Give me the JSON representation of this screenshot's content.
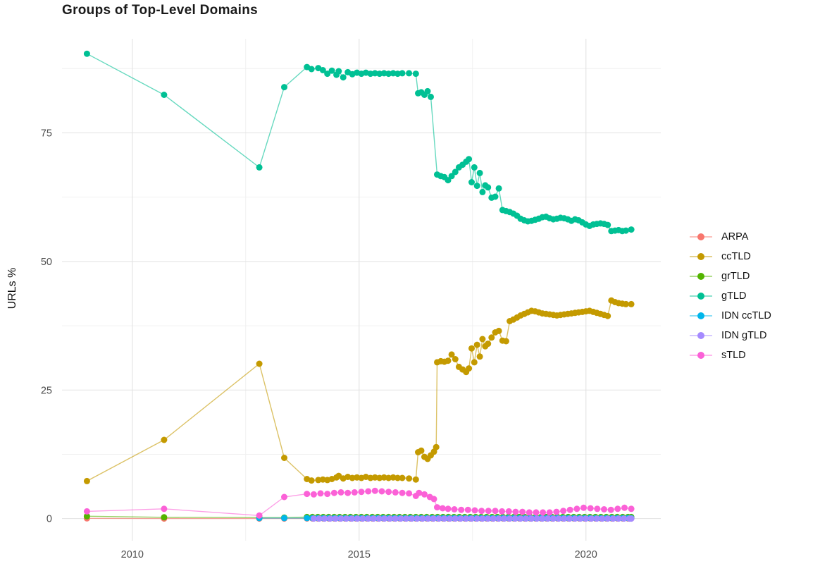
{
  "chart_data": {
    "type": "scatter",
    "title": "Groups of Top-Level Domains",
    "xlabel": "",
    "ylabel": "URLs %",
    "x_axis": {
      "ticks": [
        2010,
        2015,
        2020
      ],
      "minor_ticks": [
        2012.5,
        2017.5
      ],
      "range": [
        2008.45,
        2021.65
      ],
      "grid": true
    },
    "y_axis": {
      "ticks": [
        0,
        25,
        50,
        75
      ],
      "minor_ticks": [
        12.5,
        37.5,
        62.5,
        87.5
      ],
      "range": [
        -4.3,
        93.3
      ],
      "grid": true
    },
    "legend_position": "right",
    "style": {
      "grid_major_color": "#e2e2e2",
      "grid_minor_color": "#efefef",
      "axis_text_color": "#4d4d4d",
      "background": "#ffffff",
      "point_radius": 4.5,
      "line_opacity": 0.6
    },
    "series": [
      {
        "name": "ARPA",
        "color": "#F8766D",
        "points": [
          [
            2009.0,
            0.05
          ],
          [
            2010.7,
            0.0
          ],
          [
            2012.8,
            0.0
          ],
          [
            2013.35,
            0.0
          ]
        ],
        "runs": [
          {
            "from": 2013.85,
            "to": 2021.0,
            "step": 0.12,
            "value": 0.02
          }
        ]
      },
      {
        "name": "ccTLD",
        "color": "#C49A00",
        "points": [
          [
            2009.0,
            7.3
          ],
          [
            2010.7,
            15.3
          ],
          [
            2012.8,
            30.1
          ],
          [
            2013.35,
            11.8
          ],
          [
            2013.85,
            7.7
          ],
          [
            2013.95,
            7.4
          ],
          [
            2014.1,
            7.5
          ],
          [
            2014.2,
            7.6
          ],
          [
            2014.3,
            7.5
          ],
          [
            2014.4,
            7.7
          ],
          [
            2014.5,
            8.0
          ],
          [
            2014.55,
            8.3
          ],
          [
            2014.65,
            7.8
          ],
          [
            2014.75,
            8.1
          ],
          [
            2014.85,
            7.9
          ],
          [
            2014.95,
            8.0
          ],
          [
            2015.05,
            7.9
          ],
          [
            2015.15,
            8.1
          ],
          [
            2015.25,
            7.9
          ],
          [
            2015.35,
            8.0
          ],
          [
            2015.45,
            7.9
          ],
          [
            2015.55,
            8.0
          ],
          [
            2015.65,
            7.9
          ],
          [
            2015.75,
            8.0
          ],
          [
            2015.85,
            7.9
          ],
          [
            2015.95,
            7.9
          ],
          [
            2016.1,
            7.8
          ],
          [
            2016.25,
            7.6
          ],
          [
            2016.3,
            12.9
          ],
          [
            2016.37,
            13.2
          ],
          [
            2016.44,
            12.0
          ],
          [
            2016.51,
            11.6
          ],
          [
            2016.58,
            12.3
          ],
          [
            2016.65,
            13.0
          ],
          [
            2016.7,
            13.9
          ],
          [
            2016.72,
            30.4
          ],
          [
            2016.8,
            30.6
          ],
          [
            2016.88,
            30.5
          ],
          [
            2016.96,
            30.7
          ],
          [
            2017.04,
            31.9
          ],
          [
            2017.12,
            31.0
          ],
          [
            2017.2,
            29.5
          ],
          [
            2017.28,
            29.0
          ],
          [
            2017.36,
            28.5
          ],
          [
            2017.42,
            29.2
          ],
          [
            2017.48,
            33.1
          ],
          [
            2017.54,
            30.4
          ],
          [
            2017.6,
            33.8
          ],
          [
            2017.66,
            31.5
          ],
          [
            2017.72,
            34.9
          ],
          [
            2017.78,
            33.5
          ],
          [
            2017.84,
            34.0
          ],
          [
            2017.92,
            35.2
          ],
          [
            2018.0,
            36.2
          ],
          [
            2018.08,
            36.5
          ],
          [
            2018.16,
            34.6
          ],
          [
            2018.24,
            34.5
          ],
          [
            2018.32,
            38.4
          ],
          [
            2018.4,
            38.7
          ],
          [
            2018.48,
            39.1
          ],
          [
            2018.56,
            39.5
          ],
          [
            2018.64,
            39.8
          ],
          [
            2018.72,
            40.1
          ],
          [
            2018.8,
            40.4
          ],
          [
            2018.88,
            40.3
          ],
          [
            2018.96,
            40.1
          ],
          [
            2019.04,
            39.9
          ],
          [
            2019.12,
            39.8
          ],
          [
            2019.2,
            39.7
          ],
          [
            2019.28,
            39.6
          ],
          [
            2019.36,
            39.5
          ],
          [
            2019.44,
            39.6
          ],
          [
            2019.52,
            39.7
          ],
          [
            2019.6,
            39.8
          ],
          [
            2019.68,
            39.9
          ],
          [
            2019.76,
            40.0
          ],
          [
            2019.84,
            40.1
          ],
          [
            2019.92,
            40.2
          ],
          [
            2020.0,
            40.3
          ],
          [
            2020.08,
            40.4
          ],
          [
            2020.16,
            40.2
          ],
          [
            2020.24,
            40.0
          ],
          [
            2020.32,
            39.8
          ],
          [
            2020.4,
            39.6
          ],
          [
            2020.48,
            39.4
          ],
          [
            2020.56,
            42.4
          ],
          [
            2020.64,
            42.1
          ],
          [
            2020.72,
            41.9
          ],
          [
            2020.8,
            41.8
          ],
          [
            2020.88,
            41.7
          ],
          [
            2021.0,
            41.7
          ]
        ],
        "runs": []
      },
      {
        "name": "grTLD",
        "color": "#53B400",
        "points": [
          [
            2009.0,
            0.45
          ],
          [
            2010.7,
            0.25
          ],
          [
            2012.8,
            0.2
          ],
          [
            2013.35,
            0.2
          ]
        ],
        "runs": [
          {
            "from": 2013.85,
            "to": 2021.0,
            "step": 0.12,
            "value": 0.3
          }
        ]
      },
      {
        "name": "gTLD",
        "color": "#00C094",
        "points": [
          [
            2009.0,
            90.4
          ],
          [
            2010.7,
            82.4
          ],
          [
            2012.8,
            68.3
          ],
          [
            2013.35,
            83.9
          ],
          [
            2013.85,
            87.8
          ],
          [
            2013.95,
            87.4
          ],
          [
            2014.1,
            87.6
          ],
          [
            2014.2,
            87.2
          ],
          [
            2014.3,
            86.5
          ],
          [
            2014.4,
            87.1
          ],
          [
            2014.5,
            86.3
          ],
          [
            2014.55,
            87.0
          ],
          [
            2014.65,
            85.8
          ],
          [
            2014.75,
            86.8
          ],
          [
            2014.85,
            86.4
          ],
          [
            2014.95,
            86.7
          ],
          [
            2015.05,
            86.5
          ],
          [
            2015.15,
            86.7
          ],
          [
            2015.25,
            86.5
          ],
          [
            2015.35,
            86.6
          ],
          [
            2015.45,
            86.5
          ],
          [
            2015.55,
            86.6
          ],
          [
            2015.65,
            86.5
          ],
          [
            2015.75,
            86.6
          ],
          [
            2015.85,
            86.5
          ],
          [
            2015.95,
            86.6
          ],
          [
            2016.1,
            86.6
          ],
          [
            2016.25,
            86.5
          ],
          [
            2016.3,
            82.7
          ],
          [
            2016.37,
            82.9
          ],
          [
            2016.44,
            82.4
          ],
          [
            2016.51,
            83.1
          ],
          [
            2016.58,
            82.0
          ],
          [
            2016.72,
            66.9
          ],
          [
            2016.8,
            66.6
          ],
          [
            2016.88,
            66.4
          ],
          [
            2016.96,
            65.8
          ],
          [
            2017.04,
            66.6
          ],
          [
            2017.12,
            67.4
          ],
          [
            2017.2,
            68.3
          ],
          [
            2017.28,
            68.8
          ],
          [
            2017.36,
            69.4
          ],
          [
            2017.42,
            69.9
          ],
          [
            2017.48,
            65.4
          ],
          [
            2017.54,
            68.3
          ],
          [
            2017.6,
            64.7
          ],
          [
            2017.66,
            67.2
          ],
          [
            2017.72,
            63.5
          ],
          [
            2017.78,
            64.8
          ],
          [
            2017.84,
            64.4
          ],
          [
            2017.92,
            62.4
          ],
          [
            2018.0,
            62.6
          ],
          [
            2018.08,
            64.2
          ],
          [
            2018.16,
            60.0
          ],
          [
            2018.24,
            59.8
          ],
          [
            2018.32,
            59.6
          ],
          [
            2018.4,
            59.3
          ],
          [
            2018.48,
            58.9
          ],
          [
            2018.56,
            58.3
          ],
          [
            2018.64,
            58.0
          ],
          [
            2018.72,
            57.8
          ],
          [
            2018.8,
            57.9
          ],
          [
            2018.88,
            58.1
          ],
          [
            2018.96,
            58.3
          ],
          [
            2019.04,
            58.6
          ],
          [
            2019.12,
            58.7
          ],
          [
            2019.2,
            58.4
          ],
          [
            2019.28,
            58.2
          ],
          [
            2019.36,
            58.3
          ],
          [
            2019.44,
            58.5
          ],
          [
            2019.52,
            58.4
          ],
          [
            2019.6,
            58.2
          ],
          [
            2019.68,
            57.9
          ],
          [
            2019.76,
            58.2
          ],
          [
            2019.84,
            58.0
          ],
          [
            2019.92,
            57.6
          ],
          [
            2020.0,
            57.2
          ],
          [
            2020.08,
            56.9
          ],
          [
            2020.16,
            57.2
          ],
          [
            2020.24,
            57.3
          ],
          [
            2020.32,
            57.4
          ],
          [
            2020.4,
            57.3
          ],
          [
            2020.48,
            57.1
          ],
          [
            2020.56,
            55.9
          ],
          [
            2020.64,
            56.0
          ],
          [
            2020.72,
            56.1
          ],
          [
            2020.8,
            55.9
          ],
          [
            2020.88,
            56.0
          ],
          [
            2021.0,
            56.2
          ]
        ],
        "runs": []
      },
      {
        "name": "IDN ccTLD",
        "color": "#00B6EB",
        "points": [
          [
            2012.8,
            0.1
          ],
          [
            2013.35,
            0.1
          ]
        ],
        "runs": [
          {
            "from": 2013.85,
            "to": 2021.0,
            "step": 0.12,
            "value": 0.1
          }
        ]
      },
      {
        "name": "IDN gTLD",
        "color": "#A58AFF",
        "points": [],
        "runs": [
          {
            "from": 2014.0,
            "to": 2021.0,
            "step": 0.12,
            "value": 0.0
          }
        ]
      },
      {
        "name": "sTLD",
        "color": "#FB61D7",
        "points": [
          [
            2009.0,
            1.4
          ],
          [
            2010.7,
            1.9
          ],
          [
            2012.8,
            0.6
          ],
          [
            2013.35,
            4.2
          ],
          [
            2013.85,
            4.8
          ],
          [
            2014.0,
            4.7
          ],
          [
            2014.15,
            4.9
          ],
          [
            2014.3,
            4.8
          ],
          [
            2014.45,
            5.0
          ],
          [
            2014.6,
            5.1
          ],
          [
            2014.75,
            5.0
          ],
          [
            2014.9,
            5.1
          ],
          [
            2015.05,
            5.2
          ],
          [
            2015.2,
            5.3
          ],
          [
            2015.35,
            5.4
          ],
          [
            2015.5,
            5.3
          ],
          [
            2015.65,
            5.2
          ],
          [
            2015.8,
            5.1
          ],
          [
            2015.95,
            5.0
          ],
          [
            2016.1,
            4.9
          ],
          [
            2016.25,
            4.4
          ],
          [
            2016.32,
            5.0
          ],
          [
            2016.44,
            4.7
          ],
          [
            2016.56,
            4.2
          ],
          [
            2016.65,
            3.8
          ],
          [
            2016.72,
            2.2
          ],
          [
            2016.84,
            2.0
          ],
          [
            2016.96,
            1.9
          ],
          [
            2017.1,
            1.8
          ],
          [
            2017.25,
            1.7
          ],
          [
            2017.4,
            1.7
          ],
          [
            2017.55,
            1.6
          ],
          [
            2017.7,
            1.5
          ],
          [
            2017.85,
            1.5
          ],
          [
            2018.0,
            1.5
          ],
          [
            2018.15,
            1.4
          ],
          [
            2018.3,
            1.4
          ],
          [
            2018.45,
            1.3
          ],
          [
            2018.6,
            1.3
          ],
          [
            2018.75,
            1.2
          ],
          [
            2018.9,
            1.2
          ],
          [
            2019.05,
            1.2
          ],
          [
            2019.2,
            1.2
          ],
          [
            2019.35,
            1.3
          ],
          [
            2019.5,
            1.5
          ],
          [
            2019.65,
            1.7
          ],
          [
            2019.8,
            1.9
          ],
          [
            2019.95,
            2.1
          ],
          [
            2020.1,
            2.0
          ],
          [
            2020.25,
            1.9
          ],
          [
            2020.4,
            1.8
          ],
          [
            2020.55,
            1.7
          ],
          [
            2020.7,
            1.9
          ],
          [
            2020.85,
            2.1
          ],
          [
            2021.0,
            1.9
          ]
        ],
        "runs": []
      }
    ]
  }
}
